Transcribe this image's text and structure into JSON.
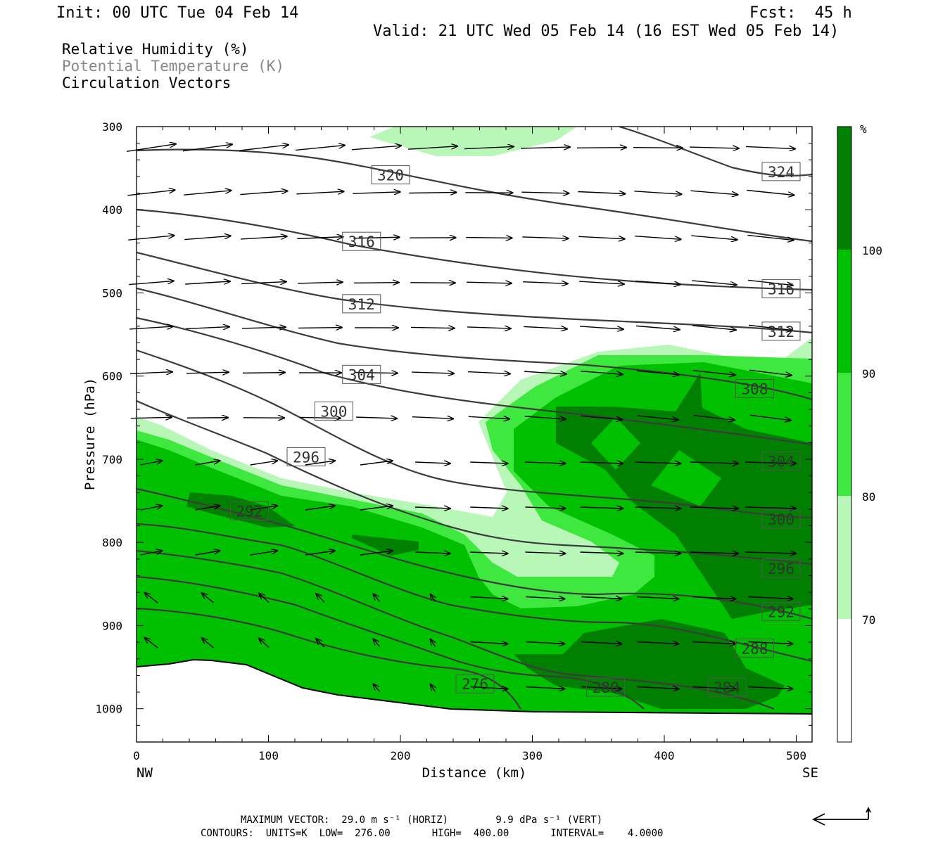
{
  "header": {
    "init": "Init: 00 UTC Tue 04 Feb 14",
    "fcst": "Fcst:  45 h",
    "valid": "Valid: 21 UTC Wed 05 Feb 14 (16 EST Wed 05 Feb 14)"
  },
  "legend": {
    "rh": "Relative Humidity (%)",
    "theta": "Potential Temperature (K)",
    "vectors": "Circulation Vectors"
  },
  "colors": {
    "rh_70": "#b9f7b9",
    "rh_80": "#3ee83e",
    "rh_90": "#00c000",
    "rh_100": "#007f00",
    "contour": "#3c3c3c"
  },
  "chart_data": {
    "type": "contour",
    "xlabel": "Distance (km)",
    "ylabel": "Pressure (hPa)",
    "xlim": [
      0,
      512
    ],
    "ylim": [
      1040,
      300
    ],
    "x_ticks": [
      "0",
      "100",
      "200",
      "300",
      "400",
      "500"
    ],
    "y_ticks": [
      "300",
      "400",
      "500",
      "600",
      "700",
      "800",
      "900",
      "1000"
    ],
    "x_end_labels": {
      "left": "NW",
      "right": "SE"
    },
    "colorbar": {
      "unit": "%",
      "levels": [
        "70",
        "80",
        "90",
        "100"
      ]
    },
    "contour_labels": [
      {
        "text": "320",
        "x": 192,
        "p": 358
      },
      {
        "text": "324",
        "x": 488,
        "p": 354
      },
      {
        "text": "316",
        "x": 170,
        "p": 438
      },
      {
        "text": "316",
        "x": 488,
        "p": 495
      },
      {
        "text": "312",
        "x": 170,
        "p": 513
      },
      {
        "text": "312",
        "x": 488,
        "p": 546
      },
      {
        "text": "304",
        "x": 170,
        "p": 598
      },
      {
        "text": "308",
        "x": 468,
        "p": 615
      },
      {
        "text": "300",
        "x": 149,
        "p": 642
      },
      {
        "text": "296",
        "x": 128,
        "p": 697
      },
      {
        "text": "304",
        "x": 488,
        "p": 702
      },
      {
        "text": "292",
        "x": 85,
        "p": 762
      },
      {
        "text": "300",
        "x": 488,
        "p": 772
      },
      {
        "text": "296",
        "x": 488,
        "p": 831
      },
      {
        "text": "292",
        "x": 488,
        "p": 883
      },
      {
        "text": "288",
        "x": 468,
        "p": 927
      },
      {
        "text": "276",
        "x": 256,
        "p": 970
      },
      {
        "text": "280",
        "x": 355,
        "p": 974
      },
      {
        "text": "284",
        "x": 447,
        "p": 974
      }
    ],
    "max_vector_line": "MAXIMUM VECTOR:  29.0 m s⁻¹ (HORIZ)        9.9 dPa s⁻¹ (VERT)",
    "contours_line": "CONTOURS:  UNITS=K  LOW=  276.00       HIGH=  400.00       INTERVAL=    4.0000"
  }
}
